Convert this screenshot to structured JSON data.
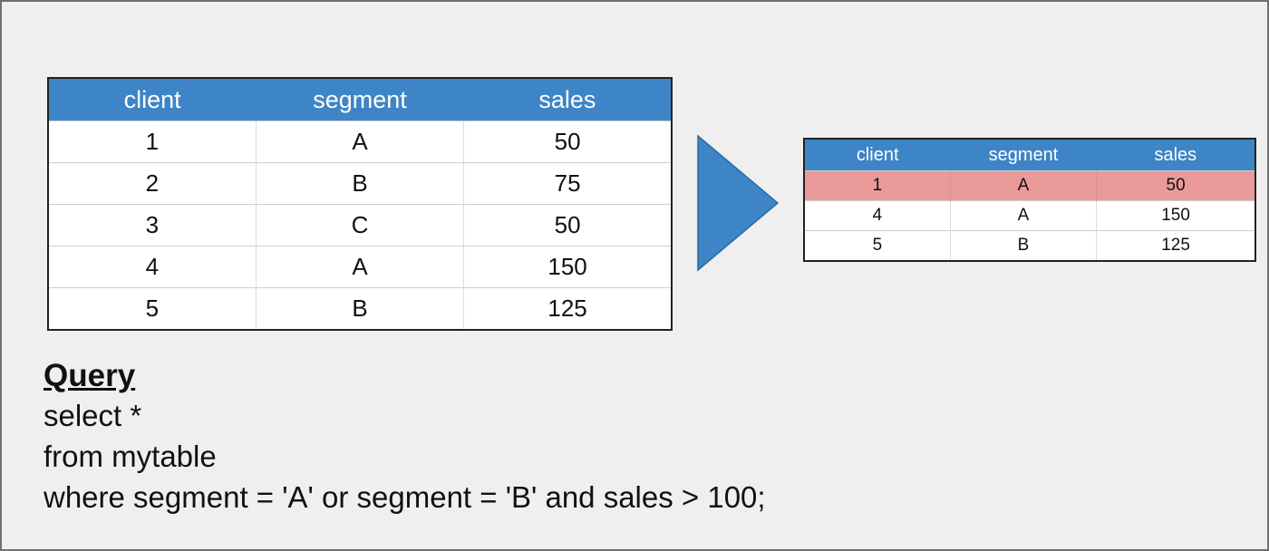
{
  "source_table": {
    "headers": [
      "client",
      "segment",
      "sales"
    ],
    "rows": [
      [
        "1",
        "A",
        "50"
      ],
      [
        "2",
        "B",
        "75"
      ],
      [
        "3",
        "C",
        "50"
      ],
      [
        "4",
        "A",
        "150"
      ],
      [
        "5",
        "B",
        "125"
      ]
    ]
  },
  "result_table": {
    "headers": [
      "client",
      "segment",
      "sales"
    ],
    "rows": [
      [
        "1",
        "A",
        "50"
      ],
      [
        "4",
        "A",
        "150"
      ],
      [
        "5",
        "B",
        "125"
      ]
    ],
    "highlight_row_index": 0
  },
  "query": {
    "title": "Query",
    "lines": [
      "select *",
      "from mytable",
      "where segment = 'A' or segment = 'B' and sales > 100;"
    ]
  },
  "colors": {
    "header_blue": "#3d85c6",
    "highlight_red": "#ea9999",
    "arrow_blue": "#3d85c6",
    "canvas_bg": "#efefef"
  }
}
